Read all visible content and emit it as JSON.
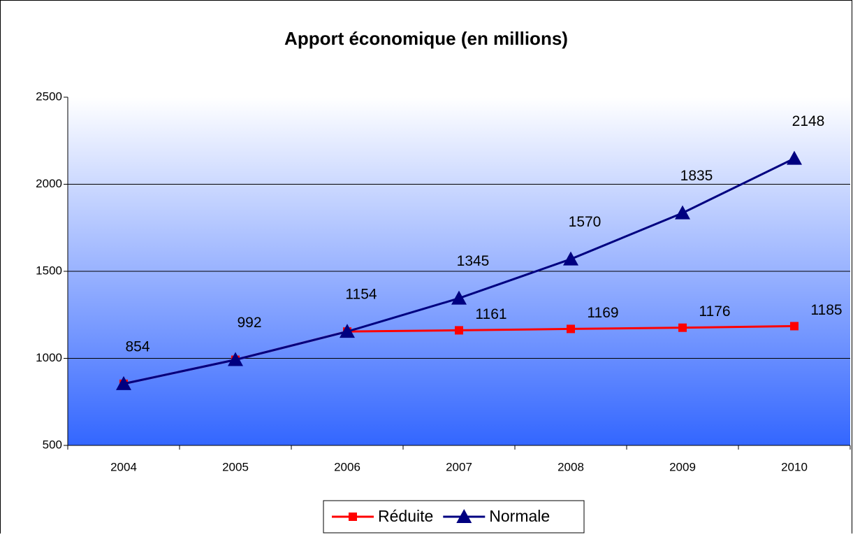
{
  "chart_data": {
    "type": "line",
    "title": "Apport économique (en millions)",
    "categories": [
      "2004",
      "2005",
      "2006",
      "2007",
      "2008",
      "2009",
      "2010"
    ],
    "series": [
      {
        "name": "Réduite",
        "color": "#ff0000",
        "marker": "square",
        "values": [
          854,
          992,
          1154,
          1161,
          1169,
          1176,
          1185
        ],
        "value_labels": [
          null,
          null,
          null,
          "1161",
          "1169",
          "1176",
          "1185"
        ]
      },
      {
        "name": "Normale",
        "color": "#000080",
        "marker": "triangle",
        "values": [
          854,
          992,
          1154,
          1345,
          1570,
          1835,
          2148
        ]
      }
    ],
    "ylim": [
      500,
      2500
    ],
    "yticks": [
      500,
      1000,
      1500,
      2000,
      2500
    ],
    "grid": true,
    "legend": "bottom"
  }
}
